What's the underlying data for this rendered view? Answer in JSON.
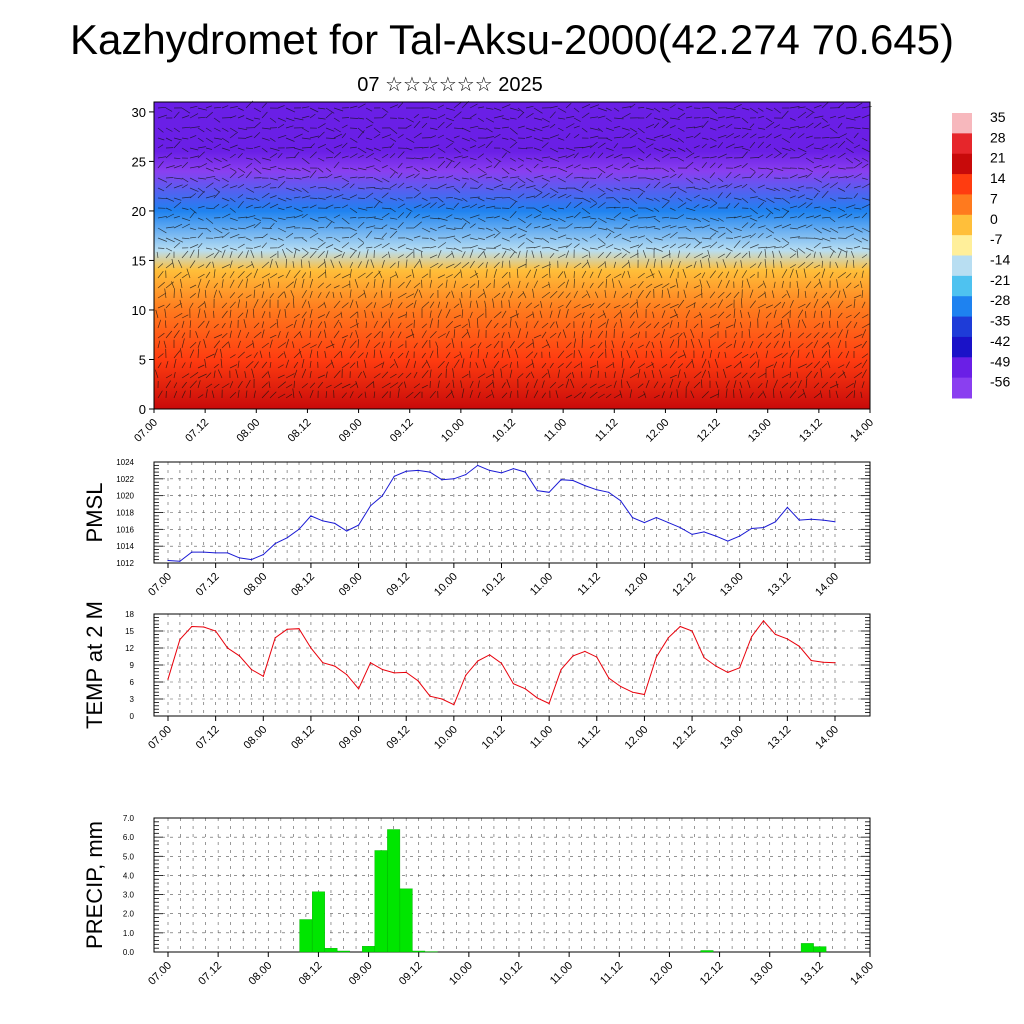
{
  "header": {
    "title": "Kazhydromet for Tal-Aksu-2000(42.274 70.645)",
    "subtitle": "07 ☆☆☆☆☆☆ 2025"
  },
  "chart_data": [
    {
      "type": "heatmap",
      "title": "",
      "y_ticks": [
        "0",
        "5",
        "10",
        "15",
        "20",
        "25",
        "30"
      ],
      "ylim": [
        0,
        31
      ],
      "x_ticks": [
        "07.00",
        "07.12",
        "08.00",
        "08.12",
        "09.00",
        "09.12",
        "10.00",
        "10.12",
        "11.00",
        "11.12",
        "12.00",
        "12.12",
        "13.00",
        "13.12",
        "14.00"
      ],
      "colorbar": {
        "labels": [
          "35",
          "28",
          "21",
          "14",
          "7",
          "0",
          "-7",
          "-14",
          "-21",
          "-28",
          "-35",
          "-42",
          "-49",
          "-56"
        ],
        "colors": [
          "#f7b8bd",
          "#e6262b",
          "#c80a0a",
          "#ff3c10",
          "#ff7a1e",
          "#ffbf3a",
          "#ffef9a",
          "#b8def2",
          "#4ec2f0",
          "#1e82f0",
          "#1e3cd8",
          "#1a12c8",
          "#6a1fe6",
          "#8a3ff0"
        ]
      },
      "temperature_profile": [
        {
          "height": 0,
          "value": 20
        },
        {
          "height": 5,
          "value": 14
        },
        {
          "height": 10,
          "value": 7
        },
        {
          "height": 14,
          "value": 0
        },
        {
          "height": 16,
          "value": -14
        },
        {
          "height": 20,
          "value": -30
        },
        {
          "height": 24,
          "value": -56
        },
        {
          "height": 26,
          "value": -52
        },
        {
          "height": 31,
          "value": -49
        }
      ],
      "overlay": "wind barbs"
    },
    {
      "type": "line",
      "ylabel": "PMSL",
      "y_ticks": [
        "1012",
        "1014",
        "1016",
        "1018",
        "1020",
        "1022",
        "1024"
      ],
      "ylim": [
        1012,
        1024
      ],
      "x_ticks": [
        "07.00",
        "07.12",
        "08.00",
        "08.12",
        "09.00",
        "09.12",
        "10.00",
        "10.12",
        "11.00",
        "11.12",
        "12.00",
        "12.12",
        "13.00",
        "13.12",
        "14.00"
      ],
      "series": [
        {
          "color": "#1a1ad4",
          "x": [
            0,
            3,
            6,
            9,
            12,
            15,
            18,
            21,
            24,
            27,
            30,
            33,
            36,
            39,
            42,
            45,
            48,
            51,
            54,
            57,
            60,
            63,
            66,
            69,
            72,
            75,
            78,
            81,
            84,
            87,
            90,
            93,
            96,
            99,
            102,
            105,
            108,
            111,
            114,
            117,
            120,
            123,
            126,
            129,
            132,
            135,
            138,
            141,
            144,
            147,
            150,
            153,
            156,
            159,
            162,
            165,
            168
          ],
          "values": [
            1012.3,
            1012.2,
            1013.3,
            1013.3,
            1013.2,
            1013.2,
            1012.6,
            1012.4,
            1013.0,
            1014.3,
            1015.0,
            1016.0,
            1017.6,
            1017.0,
            1016.7,
            1015.8,
            1016.5,
            1018.8,
            1020.0,
            1022.3,
            1022.9,
            1023.0,
            1022.8,
            1021.9,
            1022.0,
            1022.5,
            1023.6,
            1023.0,
            1022.7,
            1023.2,
            1022.8,
            1020.6,
            1020.4,
            1021.9,
            1021.8,
            1021.2,
            1020.7,
            1020.4,
            1019.4,
            1017.4,
            1016.8,
            1017.4,
            1016.8,
            1016.2,
            1015.4,
            1015.7,
            1015.2,
            1014.6,
            1015.2,
            1016.1,
            1016.2,
            1016.9,
            1018.6,
            1017.1,
            1017.2,
            1017.1,
            1016.9
          ]
        }
      ]
    },
    {
      "type": "line",
      "ylabel": "TEMP at 2 M",
      "y_ticks": [
        "0",
        "3",
        "6",
        "9",
        "12",
        "15",
        "18"
      ],
      "ylim": [
        0,
        18
      ],
      "x_ticks": [
        "07.00",
        "07.12",
        "08.00",
        "08.12",
        "09.00",
        "09.12",
        "10.00",
        "10.12",
        "11.00",
        "11.12",
        "12.00",
        "12.12",
        "13.00",
        "13.12",
        "14.00"
      ],
      "series": [
        {
          "color": "#e8000b",
          "x": [
            0,
            3,
            6,
            9,
            12,
            15,
            18,
            21,
            24,
            27,
            30,
            33,
            36,
            39,
            42,
            45,
            48,
            51,
            54,
            57,
            60,
            63,
            66,
            69,
            72,
            75,
            78,
            81,
            84,
            87,
            90,
            93,
            96,
            99,
            102,
            105,
            108,
            111,
            114,
            117,
            120,
            123,
            126,
            129,
            132,
            135,
            138,
            141,
            144,
            147,
            150,
            153,
            156,
            159,
            162,
            165,
            168
          ],
          "values": [
            6.5,
            13.5,
            15.8,
            15.7,
            15.0,
            12.0,
            10.6,
            8.2,
            7.0,
            13.8,
            15.3,
            15.4,
            12.0,
            9.4,
            8.8,
            7.3,
            4.8,
            9.4,
            8.2,
            7.6,
            7.7,
            6.2,
            3.5,
            3.0,
            2.0,
            7.2,
            9.7,
            10.8,
            9.3,
            5.7,
            4.8,
            3.2,
            2.2,
            8.2,
            10.6,
            11.4,
            10.4,
            6.7,
            5.2,
            4.2,
            3.8,
            10.4,
            13.8,
            15.8,
            15.0,
            10.3,
            8.8,
            7.7,
            8.5,
            14.0,
            16.8,
            14.4,
            13.6,
            12.3,
            9.8,
            9.5,
            9.4
          ]
        }
      ]
    },
    {
      "type": "bar",
      "ylabel": "PRECIP, mm",
      "y_ticks": [
        "0.0",
        "1.0",
        "2.0",
        "3.0",
        "4.0",
        "5.0",
        "6.0",
        "7.0"
      ],
      "ylim": [
        0,
        7
      ],
      "x_ticks": [
        "07.00",
        "07.12",
        "08.00",
        "08.12",
        "09.00",
        "09.12",
        "10.00",
        "10.12",
        "11.00",
        "11.12",
        "12.00",
        "12.12",
        "13.00",
        "13.12",
        "14.00"
      ],
      "color": "#00e600",
      "series": [
        {
          "x": [
            33,
            36,
            39,
            42,
            48,
            51,
            54,
            57,
            60,
            63,
            129,
            153,
            156
          ],
          "values": [
            1.7,
            3.15,
            0.2,
            0.05,
            0.3,
            5.3,
            6.4,
            3.3,
            0.05,
            0.02,
            0.08,
            0.45,
            0.28
          ]
        }
      ]
    }
  ]
}
